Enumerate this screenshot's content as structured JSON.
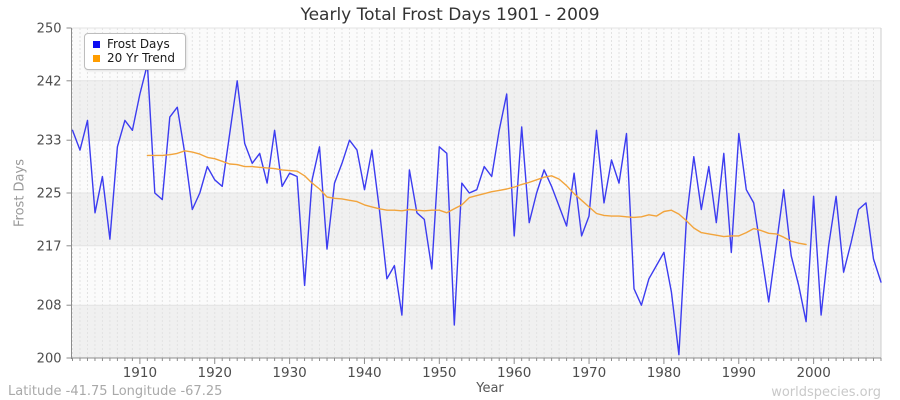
{
  "title": "Yearly Total Frost Days 1901 - 2009",
  "legend": {
    "position": "top-left",
    "items": [
      {
        "label": "Frost Days",
        "marker_color": "#0d0df2"
      },
      {
        "label": "20 Yr Trend",
        "marker_color": "#ff9d00"
      }
    ]
  },
  "footer": {
    "left": "Latitude -41.75 Longitude -67.25",
    "right": "worldspecies.org"
  },
  "chart_data": {
    "type": "line",
    "title": "Yearly Total Frost Days 1901 - 2009",
    "xlabel": "Year",
    "ylabel": "Frost Days",
    "xlim": [
      1901,
      2009
    ],
    "ylim": [
      200,
      250
    ],
    "x_ticks": [
      1910,
      1920,
      1930,
      1940,
      1950,
      1960,
      1970,
      1980,
      1990,
      2000
    ],
    "y_ticks": [
      200,
      208,
      217,
      225,
      233,
      242,
      250
    ],
    "grid": {
      "vertical": "dashed, one line per year",
      "horizontal": "solid at y ticks",
      "band_colors": [
        "#fbfbfb",
        "#f0f0f0"
      ],
      "gridline_color": "#e2e2e2"
    },
    "legend_position": "top-left",
    "series": [
      {
        "name": "Frost Days",
        "color": "#3c3cf0",
        "start_year": 1901,
        "values": [
          234.5,
          231.5,
          236,
          222,
          227.5,
          218,
          232,
          236,
          234.5,
          240,
          244.5,
          225,
          224,
          236.5,
          238,
          231,
          222.5,
          225,
          229,
          227,
          226,
          234,
          242,
          232.5,
          229.5,
          231,
          226.5,
          234.5,
          226,
          228,
          227.5,
          211,
          227,
          232,
          216.5,
          226.5,
          229.5,
          233,
          231.5,
          225.5,
          231.5,
          222.5,
          212,
          214,
          206.5,
          228.5,
          222,
          221,
          213.5,
          232,
          231,
          205,
          226.5,
          225,
          225.5,
          229,
          227.5,
          234.5,
          240,
          218.5,
          235,
          220.5,
          225,
          228.5,
          226,
          223,
          220,
          228,
          218.5,
          221.5,
          234.5,
          223.5,
          230,
          226.5,
          234,
          210.5,
          208,
          212,
          214,
          216,
          210,
          200.5,
          221,
          230.5,
          222.5,
          229,
          220.5,
          231,
          216,
          234,
          225.5,
          223.5,
          216,
          208.5,
          217,
          225.5,
          215.5,
          211,
          205.5,
          224.5,
          206.5,
          217,
          224.5,
          213,
          217.5,
          222.5,
          223.5,
          215,
          211.5
        ]
      },
      {
        "name": "20 Yr Trend",
        "color": "#f2a43c",
        "start_year": 1911,
        "values": [
          230.7,
          230.7,
          230.7,
          230.8,
          231.0,
          231.4,
          231.2,
          230.9,
          230.4,
          230.2,
          229.8,
          229.4,
          229.3,
          229.0,
          229.0,
          228.9,
          228.8,
          228.7,
          228.5,
          228.4,
          228.3,
          227.6,
          226.5,
          225.6,
          224.4,
          224.2,
          224.1,
          223.9,
          223.7,
          223.2,
          222.9,
          222.6,
          222.4,
          222.4,
          222.3,
          222.5,
          222.4,
          222.3,
          222.4,
          222.4,
          222.0,
          222.6,
          223.2,
          224.3,
          224.6,
          224.9,
          225.2,
          225.4,
          225.6,
          225.9,
          226.3,
          226.6,
          227.0,
          227.4,
          227.6,
          227.1,
          226.1,
          224.9,
          223.9,
          222.9,
          221.9,
          221.6,
          221.5,
          221.5,
          221.4,
          221.3,
          221.4,
          221.7,
          221.5,
          222.2,
          222.4,
          221.8,
          220.8,
          219.7,
          219.0,
          218.8,
          218.6,
          218.4,
          218.5,
          218.5,
          219.0,
          219.6,
          219.3,
          218.9,
          218.8,
          218.3,
          217.7,
          217.4,
          217.2
        ]
      }
    ]
  }
}
